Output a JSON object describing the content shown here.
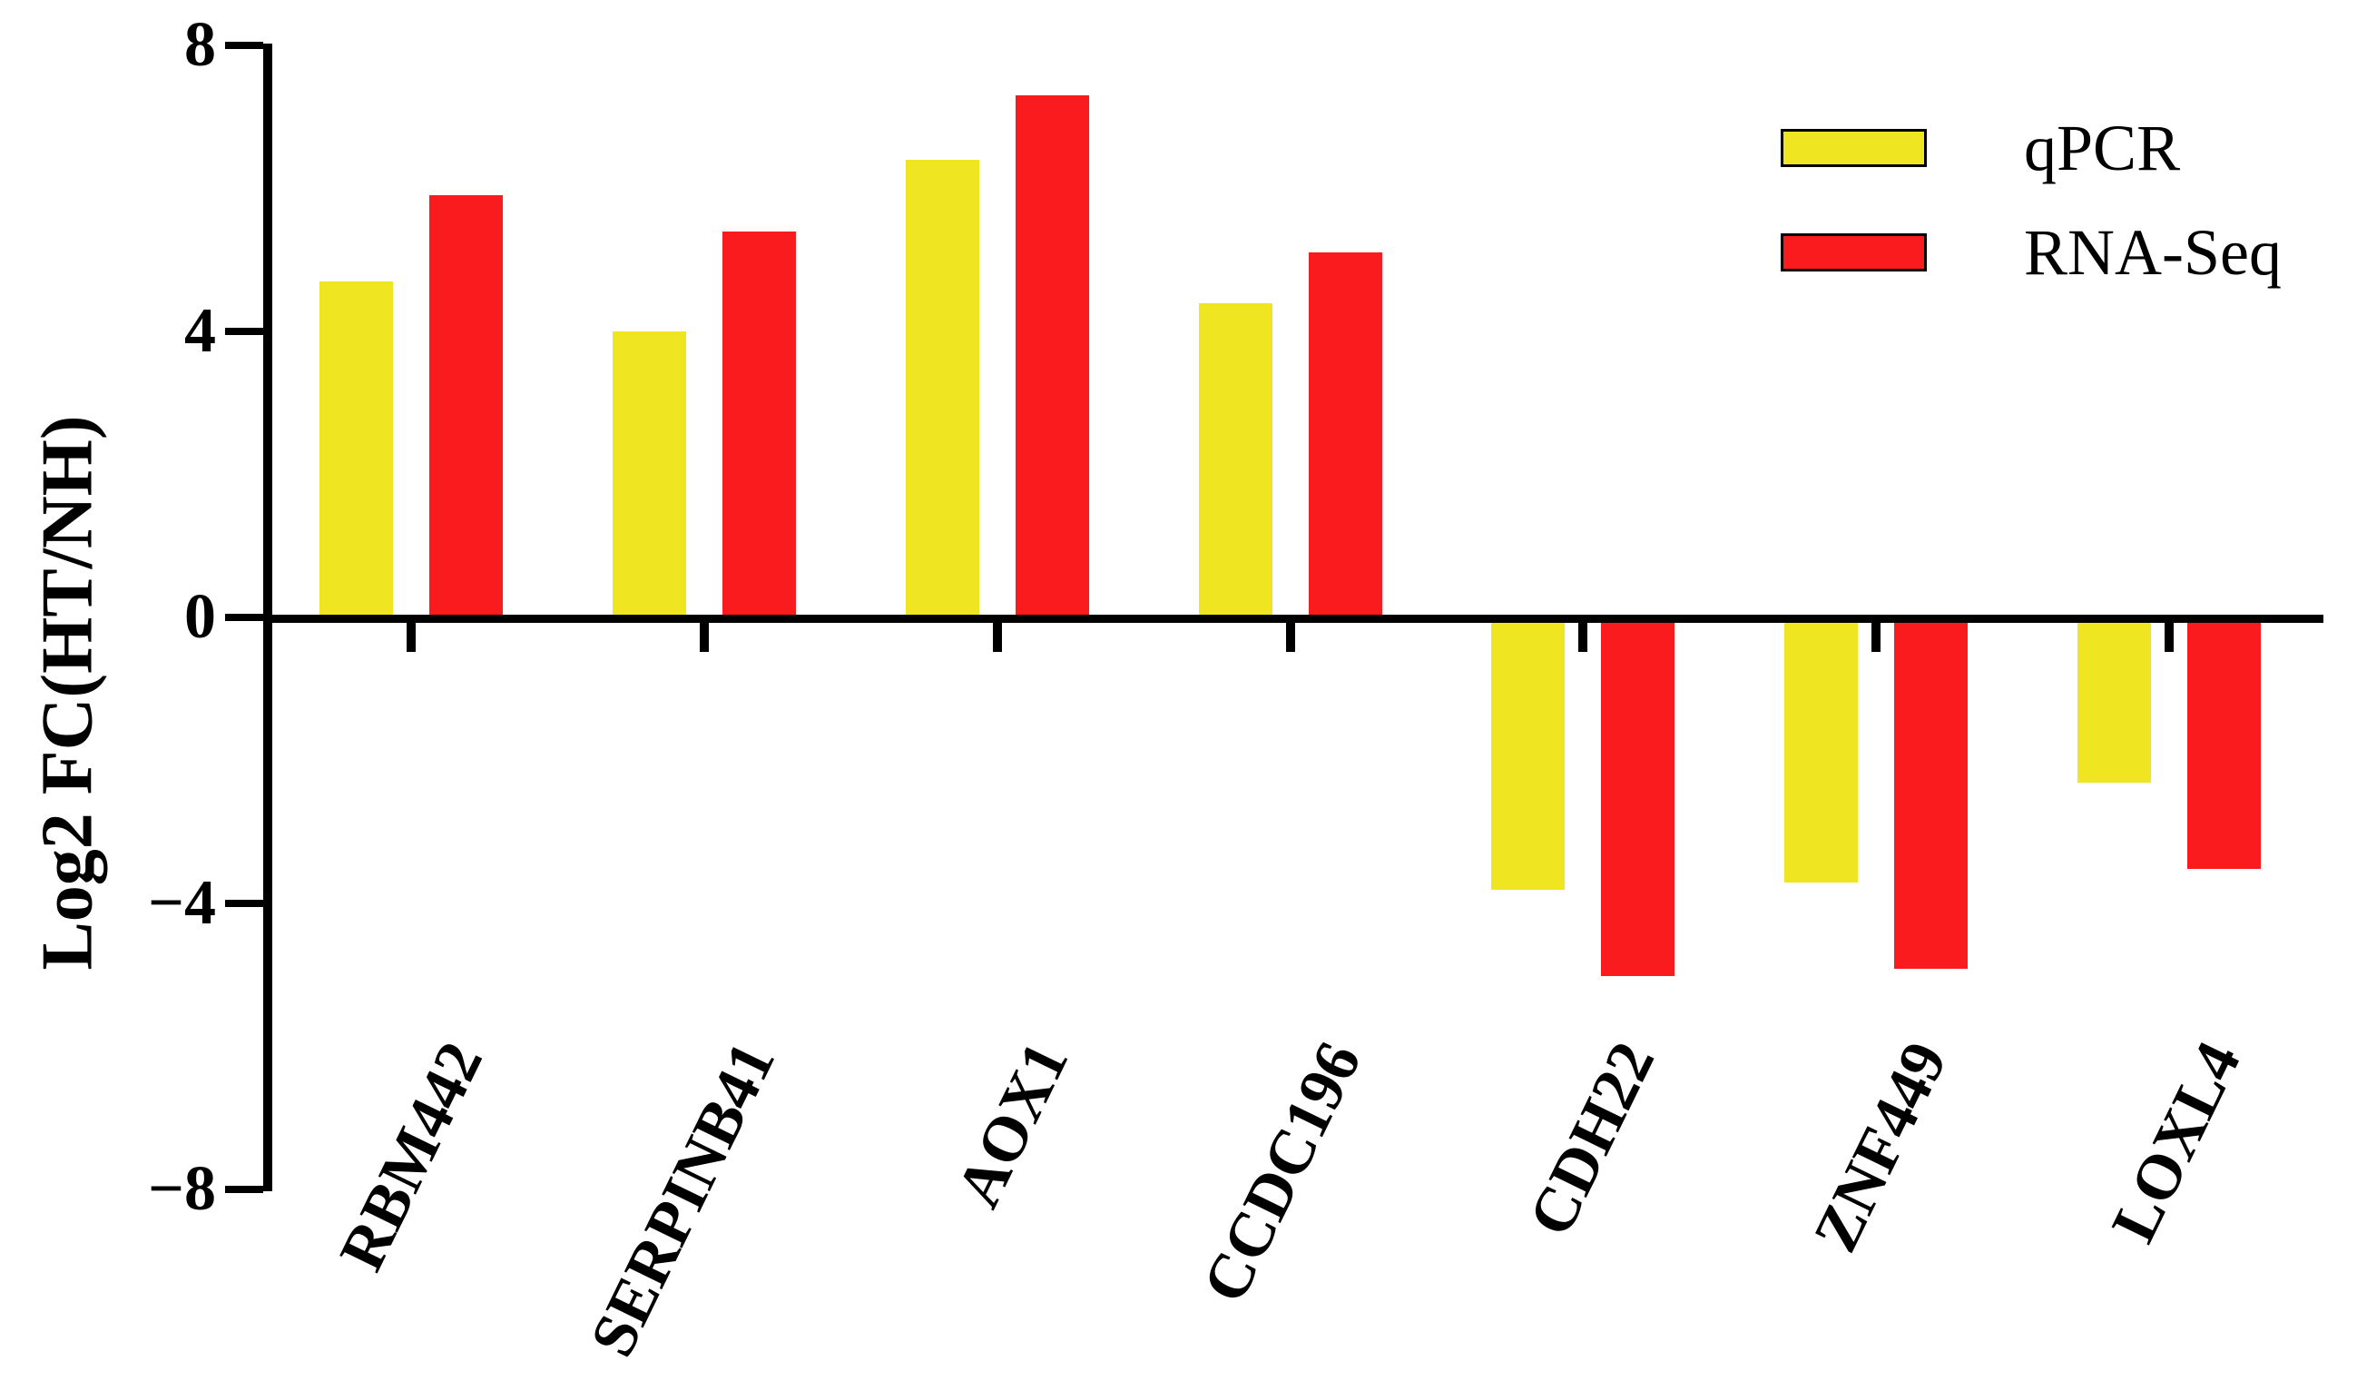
{
  "chart_data": {
    "type": "bar",
    "title": "",
    "ylabel": "Log2 FC(HT/NH)",
    "xlabel": "",
    "categories": [
      "RBM442",
      "SERPINB41",
      "AOX1",
      "CCDC196",
      "CDH22",
      "ZNF449",
      "LOXL4"
    ],
    "series": [
      {
        "name": "qPCR",
        "color": "#F0E521",
        "values": [
          4.7,
          4.0,
          6.4,
          4.4,
          -3.8,
          -3.7,
          -2.3
        ]
      },
      {
        "name": "RNA-Seq",
        "color": "#FA1B1E",
        "values": [
          5.9,
          5.4,
          7.3,
          5.1,
          -5.0,
          -4.9,
          -3.5
        ]
      }
    ],
    "ylim": [
      -8,
      8
    ],
    "yticks": [
      {
        "value": 8,
        "label": "8"
      },
      {
        "value": 4,
        "label": "4"
      },
      {
        "value": 0,
        "label": "0"
      },
      {
        "value": -4,
        "label": "−4"
      },
      {
        "value": -8,
        "label": "−8"
      }
    ],
    "grid": false,
    "legend_position": "top-right",
    "axis_color": "#000000",
    "background_color": "#ffffff"
  }
}
